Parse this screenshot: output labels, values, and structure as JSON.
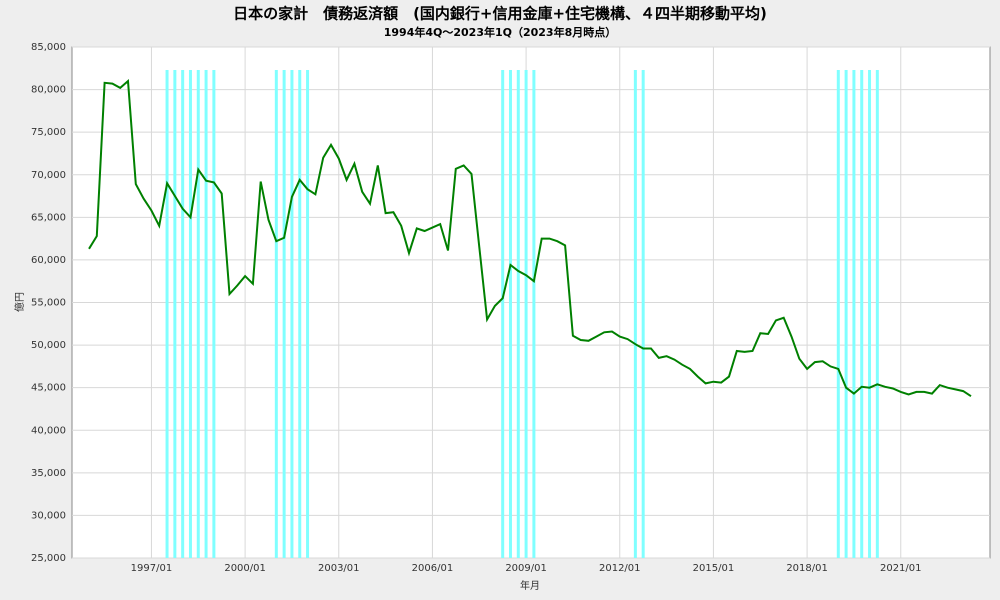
{
  "chart_data": {
    "type": "line",
    "title": "日本の家計　債務返済額　(国内銀行+信用金庫+住宅機構、４四半期移動平均)",
    "subtitle": "1994年4Q～2023年1Q（2023年8月時点）",
    "x_label": "年月",
    "y_label": "億円",
    "categories": [
      null,
      null,
      null,
      null,
      null,
      null,
      null,
      null,
      "1997/01",
      null,
      null,
      null,
      null,
      null,
      null,
      null,
      null,
      null,
      null,
      null,
      "2000/01",
      null,
      null,
      null,
      null,
      null,
      null,
      null,
      null,
      null,
      null,
      null,
      "2003/01",
      null,
      null,
      null,
      null,
      null,
      null,
      null,
      null,
      null,
      null,
      null,
      "2006/01",
      null,
      null,
      null,
      null,
      null,
      null,
      null,
      null,
      null,
      null,
      null,
      "2009/01",
      null,
      null,
      null,
      null,
      null,
      null,
      null,
      null,
      null,
      null,
      null,
      "2012/01",
      null,
      null,
      null,
      null,
      null,
      null,
      null,
      null,
      null,
      null,
      null,
      "2015/01",
      null,
      null,
      null,
      null,
      null,
      null,
      null,
      null,
      null,
      null,
      null,
      "2018/01",
      null,
      null,
      null,
      null,
      null,
      null,
      null,
      null,
      null,
      null,
      null,
      "2021/01",
      null,
      null,
      null,
      null,
      null,
      null,
      null,
      null,
      null
    ],
    "series": [
      {
        "name": "債務返済額",
        "color": "#008000",
        "values": [
          61300,
          62800,
          80800,
          80700,
          80200,
          81000,
          68900,
          67200,
          65800,
          64000,
          69000,
          67500,
          66000,
          65000,
          70600,
          69300,
          69100,
          67800,
          56000,
          57000,
          58100,
          57200,
          69200,
          64700,
          62200,
          62600,
          67400,
          69400,
          68300,
          67700,
          72000,
          73500,
          71900,
          69400,
          71300,
          68000,
          66600,
          71100,
          65500,
          65600,
          64000,
          60800,
          63700,
          63400,
          63800,
          64200,
          61100,
          70700,
          71100,
          70100,
          61500,
          53000,
          54600,
          55500,
          59400,
          58700,
          58200,
          57500,
          62500,
          62500,
          62200,
          61700,
          51100,
          50600,
          50500,
          51000,
          51500,
          51600,
          51000,
          50700,
          50100,
          49600,
          49600,
          48500,
          48700,
          48300,
          47700,
          47200,
          46300,
          45500,
          45700,
          45600,
          46300,
          49300,
          49200,
          49300,
          51400,
          51300,
          52900,
          53200,
          51000,
          48400,
          47200,
          48000,
          48100,
          47500,
          47200,
          45000,
          44300,
          45100,
          45000,
          45400,
          45100,
          44900,
          44500,
          44200,
          44500,
          44500,
          44300,
          45300,
          45000,
          44800,
          44600,
          44000
        ]
      }
    ],
    "highlights": [
      10,
      11,
      12,
      13,
      14,
      15,
      16,
      24,
      25,
      26,
      27,
      28,
      53,
      54,
      55,
      56,
      57,
      70,
      71,
      96,
      97,
      98,
      99,
      100,
      101
    ],
    "highlight_color": "#80ffff",
    "highlight_top": 82300,
    "ylim": [
      25000,
      85000
    ],
    "yticks": [
      {
        "value": 25000,
        "label": "25,000"
      },
      {
        "value": 30000,
        "label": "30,000"
      },
      {
        "value": 35000,
        "label": "35,000"
      },
      {
        "value": 40000,
        "label": "40,000"
      },
      {
        "value": 45000,
        "label": "45,000"
      },
      {
        "value": 50000,
        "label": "50,000"
      },
      {
        "value": 55000,
        "label": "55,000"
      },
      {
        "value": 60000,
        "label": "60,000"
      },
      {
        "value": 65000,
        "label": "65,000"
      },
      {
        "value": 70000,
        "label": "70,000"
      },
      {
        "value": 75000,
        "label": "75,000"
      },
      {
        "value": 80000,
        "label": "80,000"
      },
      {
        "value": 85000,
        "label": "85,000"
      }
    ],
    "grid": true
  }
}
